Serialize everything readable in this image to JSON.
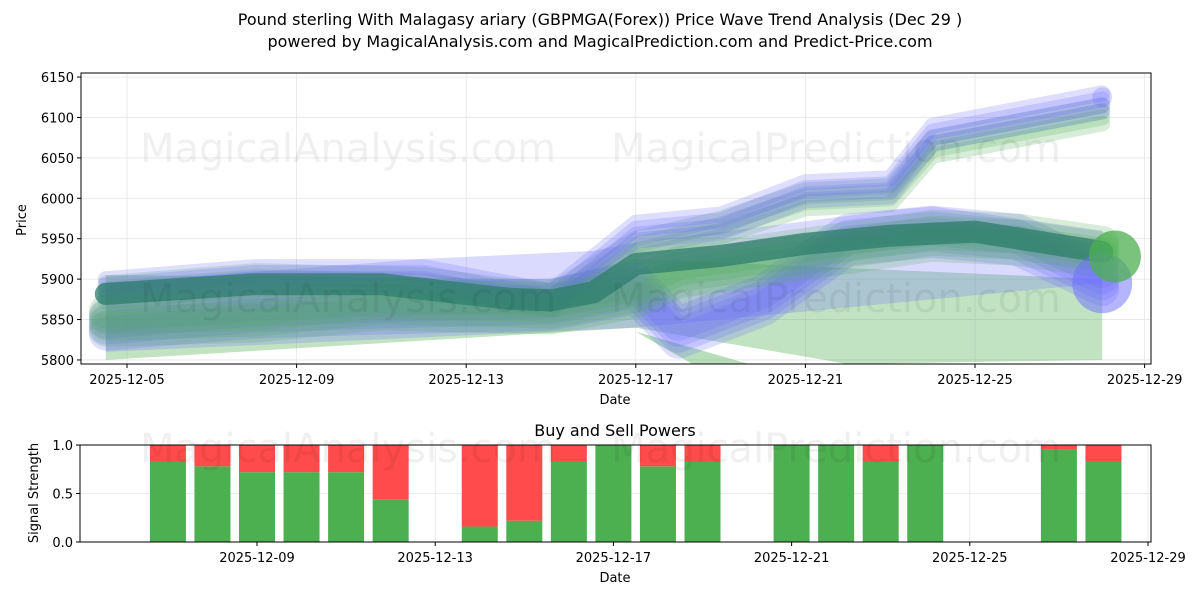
{
  "title_line1": "Pound sterling With Malagasy ariary (GBPMGA(Forex)) Price Wave Trend Analysis (Dec 29 )",
  "title_line2": "powered by MagicalAnalysis.com and MagicalPrediction.com and Predict-Price.com",
  "watermarks": [
    "MagicalAnalysis.com",
    "MagicalPrediction.com"
  ],
  "colors": {
    "green": "#4caf50",
    "blue": "#6b6bff",
    "red": "#ff4b4b",
    "teal": "#2e7d6b"
  },
  "chart_data": [
    {
      "type": "line",
      "title": "",
      "xlabel": "Date",
      "ylabel": "Price",
      "x_ticks": [
        "2025-12-05",
        "2025-12-09",
        "2025-12-13",
        "2025-12-17",
        "2025-12-21",
        "2025-12-25",
        "2025-12-29"
      ],
      "y_ticks": [
        5800,
        5850,
        5900,
        5950,
        6000,
        6050,
        6100,
        6150
      ],
      "ylim": [
        5795,
        6155
      ],
      "xlim_days": [
        3.6,
        28.5
      ],
      "grid": true,
      "series": [
        {
          "name": "green-upper",
          "color": "green",
          "x": [
            4.5,
            8,
            12,
            15,
            17,
            19,
            21,
            23,
            24,
            26,
            28
          ],
          "y": [
            5880,
            5895,
            5890,
            5870,
            5935,
            5960,
            5995,
            6000,
            6060,
            6080,
            6100
          ]
        },
        {
          "name": "blue-upper",
          "color": "blue",
          "x": [
            4.5,
            8,
            12,
            15,
            17,
            19,
            21,
            23,
            24,
            26,
            28
          ],
          "y": [
            5885,
            5900,
            5900,
            5870,
            5955,
            5965,
            6005,
            6010,
            6075,
            6095,
            6115
          ]
        },
        {
          "name": "blue-lower",
          "color": "blue",
          "x": [
            4.5,
            8,
            11,
            15,
            17,
            18,
            20,
            22,
            24,
            26,
            28
          ],
          "y": [
            5840,
            5855,
            5860,
            5865,
            5885,
            5830,
            5870,
            5945,
            5955,
            5945,
            5895
          ]
        },
        {
          "name": "green-lower",
          "color": "green",
          "x": [
            4.5,
            8,
            11,
            15,
            17,
            18,
            20,
            22,
            24,
            26,
            28
          ],
          "y": [
            5845,
            5850,
            5865,
            5860,
            5880,
            5905,
            5920,
            5935,
            5950,
            5945,
            5930
          ]
        },
        {
          "name": "teal-center",
          "color": "teal",
          "x": [
            4.5,
            8,
            11,
            14,
            15,
            16,
            17,
            19,
            21,
            23,
            25,
            28
          ],
          "y": [
            5878,
            5890,
            5890,
            5872,
            5870,
            5880,
            5915,
            5925,
            5940,
            5950,
            5955,
            5930
          ]
        }
      ]
    },
    {
      "type": "bar",
      "title": "Buy and Sell Powers",
      "xlabel": "Date",
      "ylabel": "Signal Strength",
      "x_ticks": [
        "2025-12-09",
        "2025-12-13",
        "2025-12-17",
        "2025-12-21",
        "2025-12-25",
        "2025-12-29"
      ],
      "y_ticks": [
        "0.0",
        "0.5",
        "1.0"
      ],
      "ylim": [
        0,
        1
      ],
      "categories": [
        "2025-12-07",
        "2025-12-08",
        "2025-12-09",
        "2025-12-10",
        "2025-12-11",
        "2025-12-12",
        "2025-12-14",
        "2025-12-15",
        "2025-12-16",
        "2025-12-17",
        "2025-12-18",
        "2025-12-19",
        "2025-12-21",
        "2025-12-22",
        "2025-12-23",
        "2025-12-24",
        "2025-12-27",
        "2025-12-28"
      ],
      "series": [
        {
          "name": "Buy",
          "color": "#4caf50",
          "values": [
            0.83,
            0.78,
            0.72,
            0.72,
            0.72,
            0.44,
            0.16,
            0.22,
            0.83,
            1.0,
            0.78,
            0.83,
            1.0,
            1.0,
            0.83,
            1.0,
            0.95,
            0.83
          ]
        },
        {
          "name": "Sell",
          "color": "#ff4b4b",
          "values": [
            0.17,
            0.22,
            0.28,
            0.28,
            0.28,
            0.56,
            0.84,
            0.78,
            0.17,
            0.0,
            0.22,
            0.17,
            0.0,
            0.0,
            0.17,
            0.0,
            0.05,
            0.17
          ]
        }
      ]
    }
  ]
}
